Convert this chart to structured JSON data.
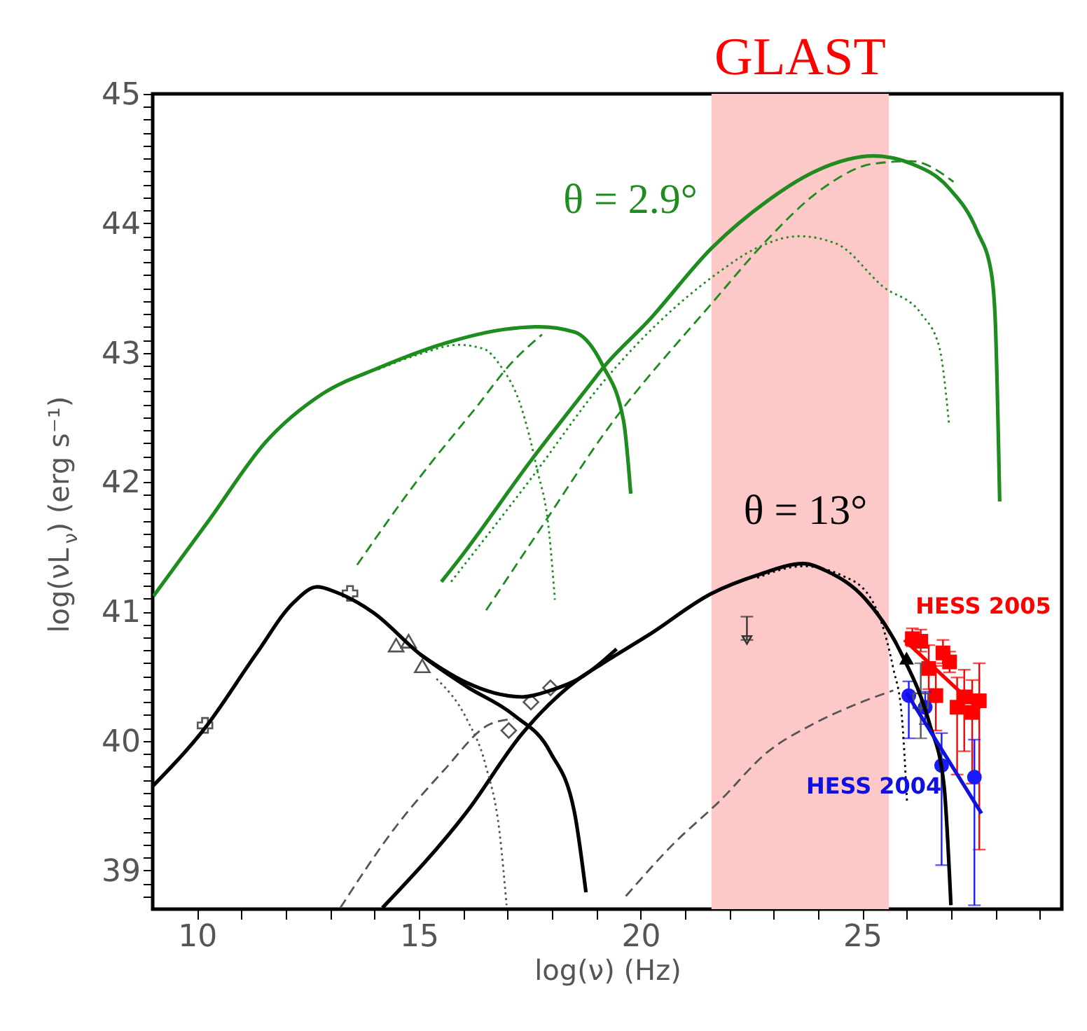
{
  "chart_data": {
    "type": "line",
    "xlabel": "log(ν) (Hz)",
    "ylabel": "log(νL$_{ν}$) (erg s⁻¹)",
    "xlim": [
      9.0,
      29.5
    ],
    "ylim": [
      38.7,
      45.0
    ],
    "xticks": [
      10,
      15,
      20,
      25,
      {
        "value": 11,
        "label": null
      },
      {
        "value": 12,
        "label": null
      },
      {
        "value": 13,
        "label": null
      },
      {
        "value": 14,
        "label": null
      },
      {
        "value": 16,
        "label": null
      },
      {
        "value": 17,
        "label": null
      },
      {
        "value": 18,
        "label": null
      },
      {
        "value": 19,
        "label": null
      },
      {
        "value": 21,
        "label": null
      },
      {
        "value": 22,
        "label": null
      },
      {
        "value": 23,
        "label": null
      },
      {
        "value": 24,
        "label": null
      },
      {
        "value": 26,
        "label": null
      },
      {
        "value": 27,
        "label": null
      },
      {
        "value": 28,
        "label": null
      },
      {
        "value": 29,
        "label": null
      }
    ],
    "yticks": [
      39,
      40,
      41,
      42,
      43,
      44,
      45,
      {
        "value": 38.8,
        "label": null
      },
      {
        "value": 38.9,
        "label": null
      },
      {
        "value": 39.1,
        "label": null
      },
      {
        "value": 39.2,
        "label": null
      },
      {
        "value": 39.3,
        "label": null
      },
      {
        "value": 39.4,
        "label": null
      },
      {
        "value": 39.5,
        "label": null
      },
      {
        "value": 39.6,
        "label": null
      },
      {
        "value": 39.7,
        "label": null
      },
      {
        "value": 39.8,
        "label": null
      },
      {
        "value": 39.9,
        "label": null
      },
      {
        "value": 40.1,
        "label": null
      },
      {
        "value": 40.2,
        "label": null
      },
      {
        "value": 40.3,
        "label": null
      },
      {
        "value": 40.4,
        "label": null
      },
      {
        "value": 40.5,
        "label": null
      },
      {
        "value": 40.6,
        "label": null
      },
      {
        "value": 40.7,
        "label": null
      },
      {
        "value": 40.8,
        "label": null
      },
      {
        "value": 40.9,
        "label": null
      },
      {
        "value": 41.1,
        "label": null
      },
      {
        "value": 41.2,
        "label": null
      },
      {
        "value": 41.3,
        "label": null
      },
      {
        "value": 41.4,
        "label": null
      },
      {
        "value": 41.5,
        "label": null
      },
      {
        "value": 41.6,
        "label": null
      },
      {
        "value": 41.7,
        "label": null
      },
      {
        "value": 41.8,
        "label": null
      },
      {
        "value": 41.9,
        "label": null
      },
      {
        "value": 42.1,
        "label": null
      },
      {
        "value": 42.2,
        "label": null
      },
      {
        "value": 42.3,
        "label": null
      },
      {
        "value": 42.4,
        "label": null
      },
      {
        "value": 42.5,
        "label": null
      },
      {
        "value": 42.6,
        "label": null
      },
      {
        "value": 42.7,
        "label": null
      },
      {
        "value": 42.8,
        "label": null
      },
      {
        "value": 42.9,
        "label": null
      },
      {
        "value": 43.1,
        "label": null
      },
      {
        "value": 43.2,
        "label": null
      },
      {
        "value": 43.3,
        "label": null
      },
      {
        "value": 43.4,
        "label": null
      },
      {
        "value": 43.5,
        "label": null
      },
      {
        "value": 43.6,
        "label": null
      },
      {
        "value": 43.7,
        "label": null
      },
      {
        "value": 43.8,
        "label": null
      },
      {
        "value": 43.9,
        "label": null
      },
      {
        "value": 44.1,
        "label": null
      },
      {
        "value": 44.2,
        "label": null
      },
      {
        "value": 44.3,
        "label": null
      },
      {
        "value": 44.4,
        "label": null
      },
      {
        "value": 44.5,
        "label": null
      },
      {
        "value": 44.6,
        "label": null
      },
      {
        "value": 44.7,
        "label": null
      },
      {
        "value": 44.8,
        "label": null
      },
      {
        "value": 44.9,
        "label": null
      }
    ],
    "bands": [
      {
        "axis": "x",
        "from": 21.6,
        "to": 25.6,
        "label": "GLAST",
        "color": "#fcc8c8"
      }
    ],
    "annotations": [
      "θ = 2.9°",
      "θ = 13°"
    ],
    "series": [
      {
        "type": "line",
        "color": "#1e8c1e",
        "line_style": "solid",
        "x": [
          9.02,
          10.28,
          11.55,
          12.82,
          14.08,
          15.66,
          16.93,
          17.72,
          18.51,
          19.15,
          19.62,
          19.78
        ],
        "values": [
          41.12,
          41.71,
          42.31,
          42.68,
          42.88,
          43.08,
          43.18,
          43.2,
          43.16,
          42.9,
          42.47,
          41.91
        ]
      },
      {
        "type": "line",
        "color": "#1e8c1e",
        "line_style": "dotted",
        "x": [
          14.08,
          15.03,
          15.89,
          16.46,
          16.84,
          17.31,
          17.66,
          17.94,
          18.07
        ],
        "values": [
          42.87,
          42.99,
          43.06,
          43.03,
          42.9,
          42.58,
          42.11,
          41.61,
          41.09
        ]
      },
      {
        "type": "line",
        "color": "#1e8c1e",
        "line_style": "dashed",
        "x": [
          13.61,
          15.03,
          16.3,
          17.09,
          17.78
        ],
        "values": [
          41.36,
          42.04,
          42.58,
          42.92,
          43.14
        ]
      },
      {
        "type": "line",
        "color": "#1e8c1e",
        "line_style": "solid",
        "x": [
          15.51,
          15.88,
          17.56,
          18.99,
          19.15,
          20.19,
          21.61,
          22.85,
          23.99,
          25.25,
          26.11,
          26.96,
          27.59,
          27.91,
          28.0,
          28.1
        ],
        "values": [
          41.23,
          41.39,
          42.18,
          42.81,
          42.88,
          43.25,
          43.81,
          44.17,
          44.41,
          44.52,
          44.46,
          44.27,
          43.94,
          43.62,
          43.25,
          41.85
        ]
      },
      {
        "type": "line",
        "color": "#1e8c1e",
        "line_style": "dashed",
        "x": [
          16.52,
          17.88,
          19.15,
          21.68,
          22.85,
          24.11,
          25.25,
          26.11,
          27.06
        ],
        "values": [
          41.01,
          41.71,
          42.36,
          43.41,
          43.87,
          44.27,
          44.46,
          44.48,
          44.32
        ]
      },
      {
        "type": "line",
        "color": "#1e8c1e",
        "line_style": "dotted",
        "x": [
          15.73,
          17.56,
          19.15,
          21.68,
          22.63,
          23.58,
          24.43,
          25.47,
          26.33,
          26.74,
          26.96
        ],
        "values": [
          41.23,
          42.04,
          42.77,
          43.6,
          43.81,
          43.9,
          43.84,
          43.51,
          43.3,
          43.04,
          42.44
        ]
      },
      {
        "type": "line",
        "color": "#000000",
        "line_style": "solid",
        "x": [
          9.0,
          10.18,
          11.33,
          12.18,
          12.71,
          13.13,
          13.98,
          15.03,
          16.08,
          17.14,
          17.97,
          18.51,
          18.77
        ],
        "values": [
          39.65,
          40.1,
          40.67,
          41.07,
          41.19,
          41.15,
          40.99,
          40.67,
          40.42,
          40.2,
          39.91,
          39.45,
          38.83
        ]
      },
      {
        "type": "line",
        "color": "#000000",
        "line_style": "solid",
        "x": [
          15.03,
          16.08,
          16.71,
          17.34,
          17.97,
          18.61,
          19.46
        ],
        "values": [
          40.67,
          40.45,
          40.37,
          40.34,
          40.39,
          40.48,
          40.71
        ]
      },
      {
        "type": "line",
        "color": "#000000",
        "line_style": "solid",
        "x": [
          14.18,
          16.08,
          17.34,
          18.61,
          19.15,
          20.19,
          21.61,
          22.63,
          23.67,
          24.21,
          25.06,
          25.89,
          26.52,
          26.84,
          27.0
        ],
        "values": [
          38.71,
          39.45,
          40.06,
          40.48,
          40.6,
          40.82,
          41.14,
          41.28,
          41.37,
          41.31,
          41.1,
          40.67,
          40.13,
          39.67,
          38.73
        ]
      },
      {
        "type": "line",
        "color": "#555555",
        "line_style": "dotted",
        "x": [
          15.4,
          16.08,
          16.51,
          16.83,
          16.98
        ],
        "values": [
          40.48,
          40.17,
          39.81,
          39.27,
          38.73
        ]
      },
      {
        "type": "line",
        "color": "#555555",
        "line_style": "dashed",
        "x": [
          13.23,
          14.49,
          15.56,
          16.61,
          17.14
        ],
        "values": [
          38.71,
          39.34,
          39.77,
          40.13,
          40.17
        ]
      },
      {
        "type": "line",
        "color": "#555555",
        "line_style": "dashed",
        "x": [
          19.67,
          20.73,
          21.77,
          22.85,
          23.89,
          24.84,
          25.7
        ],
        "values": [
          38.8,
          39.2,
          39.53,
          39.91,
          40.13,
          40.28,
          40.39
        ]
      },
      {
        "type": "line",
        "color": "#000000",
        "line_style": "dotted",
        "x": [
          22.63,
          23.67,
          24.53,
          25.16,
          25.7,
          25.89,
          26.01
        ],
        "values": [
          41.26,
          41.35,
          41.28,
          41.12,
          40.56,
          40.2,
          39.53
        ]
      },
      {
        "type": "scatter",
        "color": "#555555",
        "marker": "cross",
        "x": [
          10.18,
          13.45
        ],
        "values": [
          40.12,
          41.14
        ]
      },
      {
        "type": "scatter",
        "color": "#555555",
        "marker": "triangle",
        "x": [
          14.49,
          14.77,
          15.08
        ],
        "values": [
          40.74,
          40.77,
          40.58
        ]
      },
      {
        "type": "scatter",
        "color": "#555555",
        "marker": "diamond",
        "x": [
          17.03,
          17.53,
          17.97
        ],
        "values": [
          40.08,
          40.3,
          40.41
        ]
      },
      {
        "type": "scatter",
        "color": "#333333",
        "marker": "triangle",
        "x": [
          22.4
        ],
        "values": [
          40.78
        ],
        "errors": [
          [
            40.78,
            40.96
          ]
        ]
      },
      {
        "type": "scatter",
        "color": "#000000",
        "marker": "triangle",
        "x": [
          26.0
        ],
        "values": [
          40.64
        ]
      },
      {
        "type": "scatter",
        "color": "#ff0000",
        "marker": "square",
        "x": [
          26.13,
          26.32,
          26.5,
          26.66,
          26.82,
          26.97,
          27.14,
          27.3,
          27.48,
          27.64
        ],
        "values": [
          40.79,
          40.77,
          40.56,
          40.35,
          40.68,
          40.61,
          40.26,
          40.34,
          40.22,
          40.31
        ],
        "errors": [
          [
            40.73,
            40.87
          ],
          [
            40.69,
            40.86
          ],
          [
            40.4,
            40.74
          ],
          [
            40.08,
            40.58
          ],
          [
            40.6,
            40.78
          ],
          [
            40.53,
            40.69
          ],
          [
            39.74,
            40.49
          ],
          [
            39.92,
            40.55
          ],
          [
            39.67,
            40.47
          ],
          [
            39.16,
            40.6
          ]
        ]
      },
      {
        "type": "line",
        "name": "HESS 2005",
        "color": "#ff0000",
        "line_style": "solid",
        "x": [
          25.95,
          27.64
        ],
        "values": [
          40.78,
          40.24
        ]
      },
      {
        "type": "scatter",
        "color": "#1a1aff",
        "marker": "circle",
        "x": [
          26.05,
          26.42,
          26.79,
          27.53
        ],
        "values": [
          40.35,
          40.26,
          39.81,
          39.72
        ],
        "errors": [
          [
            40.02,
            40.46
          ],
          [
            40.13,
            40.38
          ],
          [
            39.04,
            40.06
          ],
          [
            38.73,
            40.01
          ]
        ]
      },
      {
        "type": "line",
        "name": "HESS 2004",
        "color": "#1010e0",
        "line_style": "solid",
        "x": [
          26.0,
          27.69
        ],
        "values": [
          40.37,
          39.44
        ]
      },
      {
        "type": "scatter",
        "color": "#555555",
        "marker": "square",
        "x": [
          26.32
        ],
        "values": [
          40.31
        ],
        "errors": [
          [
            40.02,
            40.6
          ]
        ]
      }
    ]
  }
}
